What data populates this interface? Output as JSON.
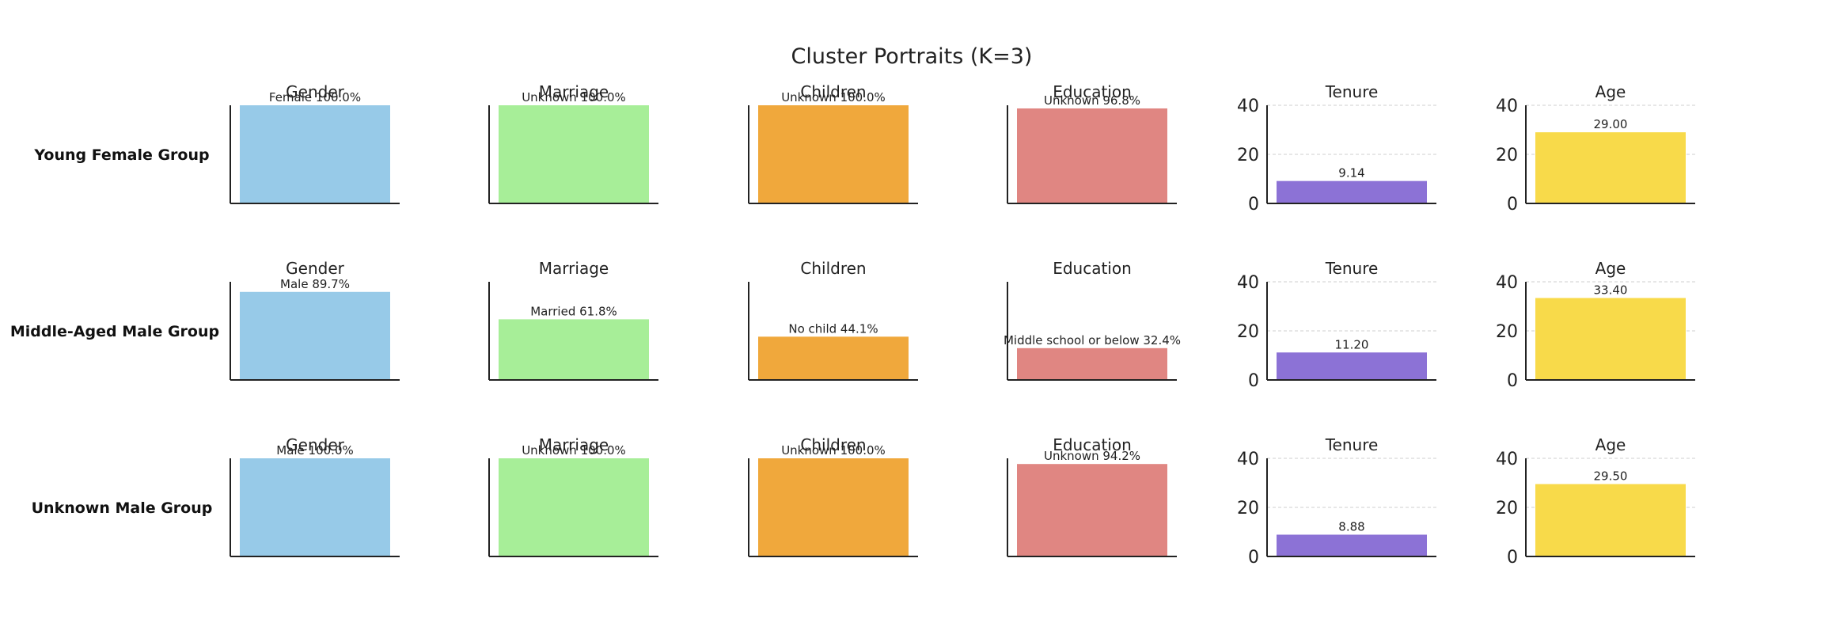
{
  "chart_data": {
    "type": "bar",
    "title": "Cluster Portraits (K=3)",
    "colors": {
      "Gender": "#97CAE8",
      "Marriage": "#A7EE98",
      "Children": "#F0A83C",
      "Education": "#E08682",
      "Tenure": "#8C72D6",
      "Age": "#F8DA4A"
    },
    "numeric_axis": {
      "ylim": [
        0,
        40
      ],
      "ticks": [
        "0",
        "20",
        "40"
      ],
      "grid": true
    },
    "rows": [
      {
        "name": "Young Female Group",
        "panels": [
          {
            "title": "Gender",
            "kind": "percent",
            "category": "Female",
            "value": 100.0,
            "label": "Female 100.0%"
          },
          {
            "title": "Marriage",
            "kind": "percent",
            "category": "Unknown",
            "value": 100.0,
            "label": "Unknown 100.0%"
          },
          {
            "title": "Children",
            "kind": "percent",
            "category": "Unknown",
            "value": 100.0,
            "label": "Unknown 100.0%"
          },
          {
            "title": "Education",
            "kind": "percent",
            "category": "Unknown",
            "value": 96.8,
            "label": "Unknown 96.8%"
          },
          {
            "title": "Tenure",
            "kind": "numeric",
            "value": 9.14,
            "label": "9.14"
          },
          {
            "title": "Age",
            "kind": "numeric",
            "value": 29.0,
            "label": "29.00"
          }
        ]
      },
      {
        "name": "Middle-Aged Male Group",
        "panels": [
          {
            "title": "Gender",
            "kind": "percent",
            "category": "Male",
            "value": 89.7,
            "label": "Male 89.7%"
          },
          {
            "title": "Marriage",
            "kind": "percent",
            "category": "Married",
            "value": 61.8,
            "label": "Married 61.8%"
          },
          {
            "title": "Children",
            "kind": "percent",
            "category": "No child",
            "value": 44.1,
            "label": "No child 44.1%"
          },
          {
            "title": "Education",
            "kind": "percent",
            "category": "Middle school or below",
            "value": 32.4,
            "label": "Middle school or below 32.4%"
          },
          {
            "title": "Tenure",
            "kind": "numeric",
            "value": 11.2,
            "label": "11.20"
          },
          {
            "title": "Age",
            "kind": "numeric",
            "value": 33.4,
            "label": "33.40"
          }
        ]
      },
      {
        "name": "Unknown Male Group",
        "panels": [
          {
            "title": "Gender",
            "kind": "percent",
            "category": "Male",
            "value": 100.0,
            "label": "Male 100.0%"
          },
          {
            "title": "Marriage",
            "kind": "percent",
            "category": "Unknown",
            "value": 100.0,
            "label": "Unknown 100.0%"
          },
          {
            "title": "Children",
            "kind": "percent",
            "category": "Unknown",
            "value": 100.0,
            "label": "Unknown 100.0%"
          },
          {
            "title": "Education",
            "kind": "percent",
            "category": "Unknown",
            "value": 94.2,
            "label": "Unknown 94.2%"
          },
          {
            "title": "Tenure",
            "kind": "numeric",
            "value": 8.88,
            "label": "8.88"
          },
          {
            "title": "Age",
            "kind": "numeric",
            "value": 29.5,
            "label": "29.50"
          }
        ]
      }
    ]
  }
}
